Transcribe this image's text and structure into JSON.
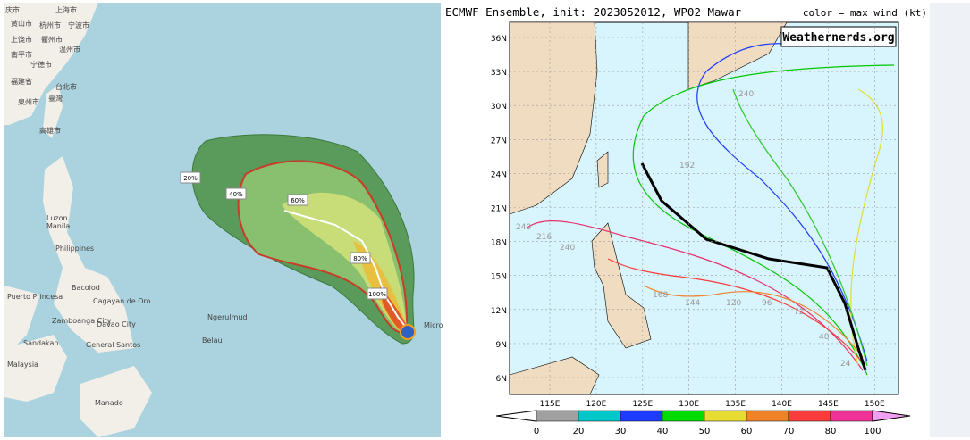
{
  "left_map": {
    "place_labels": [
      "庆市",
      "上海市",
      "黄山市",
      "杭州市",
      "宁波市",
      "上饶市",
      "衢州市",
      "温州市",
      "南平市",
      "宁德市",
      "福建省",
      "台北市",
      "泉州市",
      "臺灣",
      "高雄市",
      "Luzon",
      "Manila",
      "Philippines",
      "Bacolod",
      "Puerto Princesa",
      "Cagayan de Oro",
      "Zamboanga City",
      "Davao City",
      "Sandakan",
      "General Santos",
      "Malaysia",
      "Ngerulmud",
      "Belau",
      "Manado",
      "Micro"
    ],
    "probability_labels": [
      "20%",
      "40%",
      "60%",
      "80%",
      "100%"
    ]
  },
  "right_map": {
    "title": "ECMWF Ensemble, init: 2023052012, WP02 Mawar",
    "legend_label": "color = max wind (kt)",
    "watermark": "Weathernerds.org",
    "lat_labels": [
      "6N",
      "9N",
      "12N",
      "15N",
      "18N",
      "21N",
      "24N",
      "27N",
      "30N",
      "33N",
      "36N"
    ],
    "lon_labels": [
      "115E",
      "120E",
      "125E",
      "130E",
      "135E",
      "140E",
      "145E",
      "150E"
    ],
    "track_labels": [
      "144",
      "120",
      "96",
      "72",
      "48",
      "24",
      "240",
      "216",
      "240",
      "192",
      "168",
      "240"
    ],
    "colorbar": {
      "ticks": [
        "0",
        "20",
        "30",
        "40",
        "50",
        "60",
        "70",
        "80",
        "100"
      ],
      "colors": [
        "#a0a0a0",
        "#00c8c8",
        "#1e3cff",
        "#00dc00",
        "#e6dc32",
        "#f08228",
        "#fa3c3c",
        "#f03296",
        "#f0a0f0"
      ]
    }
  }
}
